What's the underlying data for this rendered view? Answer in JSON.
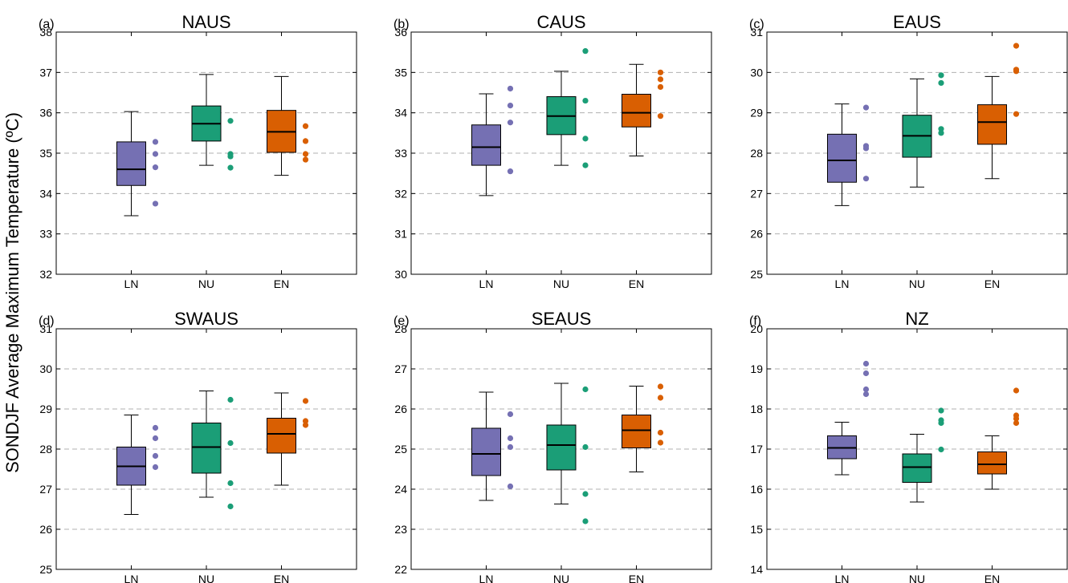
{
  "figure": {
    "ylabel": "SONDJF Average Maximum Temperature (ºC)"
  },
  "colors": {
    "LN": "#7570b3",
    "NU": "#1b9e77",
    "EN": "#d95f02"
  },
  "chart_data": [
    {
      "type": "box",
      "panel_label": "(a)",
      "title": "NAUS",
      "categories": [
        "LN",
        "NU",
        "EN"
      ],
      "ylim": [
        32,
        38
      ],
      "yticks": [
        32,
        33,
        34,
        35,
        36,
        37,
        38
      ],
      "grid": "horizontal dashed",
      "boxes": [
        {
          "name": "LN",
          "whisker_low": 33.45,
          "q1": 34.2,
          "median": 34.6,
          "q3": 35.28,
          "whisker_high": 36.03
        },
        {
          "name": "NU",
          "whisker_low": 34.7,
          "q1": 35.3,
          "median": 35.73,
          "q3": 36.17,
          "whisker_high": 36.95
        },
        {
          "name": "EN",
          "whisker_low": 34.45,
          "q1": 35.02,
          "median": 35.53,
          "q3": 36.06,
          "whisker_high": 36.9
        }
      ],
      "points": [
        {
          "name": "LN",
          "values": [
            35.28,
            34.98,
            34.65,
            33.75
          ]
        },
        {
          "name": "NU",
          "values": [
            35.8,
            34.98,
            34.92,
            34.64
          ]
        },
        {
          "name": "EN",
          "values": [
            35.67,
            35.3,
            34.98,
            34.84
          ]
        }
      ]
    },
    {
      "type": "box",
      "panel_label": "(b)",
      "title": "CAUS",
      "categories": [
        "LN",
        "NU",
        "EN"
      ],
      "ylim": [
        30,
        36
      ],
      "yticks": [
        30,
        31,
        32,
        33,
        34,
        35,
        36
      ],
      "grid": "horizontal dashed",
      "boxes": [
        {
          "name": "LN",
          "whisker_low": 31.95,
          "q1": 32.7,
          "median": 33.15,
          "q3": 33.7,
          "whisker_high": 34.47
        },
        {
          "name": "NU",
          "whisker_low": 32.7,
          "q1": 33.46,
          "median": 33.92,
          "q3": 34.4,
          "whisker_high": 35.03
        },
        {
          "name": "EN",
          "whisker_low": 32.93,
          "q1": 33.65,
          "median": 34.0,
          "q3": 34.46,
          "whisker_high": 35.2
        }
      ],
      "points": [
        {
          "name": "LN",
          "values": [
            34.6,
            34.18,
            33.76,
            32.55
          ]
        },
        {
          "name": "NU",
          "values": [
            35.53,
            34.3,
            33.36,
            32.7
          ]
        },
        {
          "name": "EN",
          "values": [
            35.0,
            34.83,
            34.64,
            33.92
          ]
        }
      ]
    },
    {
      "type": "box",
      "panel_label": "(c)",
      "title": "EAUS",
      "categories": [
        "LN",
        "NU",
        "EN"
      ],
      "ylim": [
        25,
        31
      ],
      "yticks": [
        25,
        26,
        27,
        28,
        29,
        30,
        31
      ],
      "grid": "horizontal dashed",
      "boxes": [
        {
          "name": "LN",
          "whisker_low": 26.7,
          "q1": 27.28,
          "median": 27.82,
          "q3": 28.47,
          "whisker_high": 29.22
        },
        {
          "name": "NU",
          "whisker_low": 27.16,
          "q1": 27.9,
          "median": 28.43,
          "q3": 28.94,
          "whisker_high": 29.84
        },
        {
          "name": "EN",
          "whisker_low": 27.37,
          "q1": 28.22,
          "median": 28.77,
          "q3": 29.2,
          "whisker_high": 29.9
        }
      ],
      "points": [
        {
          "name": "LN",
          "values": [
            29.13,
            28.18,
            28.12,
            27.37
          ]
        },
        {
          "name": "NU",
          "values": [
            29.93,
            29.74,
            28.6,
            28.5
          ]
        },
        {
          "name": "EN",
          "values": [
            30.66,
            30.07,
            30.03,
            28.97
          ]
        }
      ]
    },
    {
      "type": "box",
      "panel_label": "(d)",
      "title": "SWAUS",
      "categories": [
        "LN",
        "NU",
        "EN"
      ],
      "ylim": [
        25,
        31
      ],
      "yticks": [
        25,
        26,
        27,
        28,
        29,
        30,
        31
      ],
      "grid": "horizontal dashed",
      "boxes": [
        {
          "name": "LN",
          "whisker_low": 26.37,
          "q1": 27.1,
          "median": 27.57,
          "q3": 28.05,
          "whisker_high": 28.85
        },
        {
          "name": "NU",
          "whisker_low": 26.8,
          "q1": 27.4,
          "median": 28.05,
          "q3": 28.65,
          "whisker_high": 29.45
        },
        {
          "name": "EN",
          "whisker_low": 27.1,
          "q1": 27.9,
          "median": 28.38,
          "q3": 28.77,
          "whisker_high": 29.4
        }
      ],
      "points": [
        {
          "name": "LN",
          "values": [
            28.53,
            28.27,
            27.83,
            27.55
          ]
        },
        {
          "name": "NU",
          "values": [
            29.23,
            28.15,
            27.15,
            26.57
          ]
        },
        {
          "name": "EN",
          "values": [
            29.2,
            28.7,
            28.6
          ]
        }
      ]
    },
    {
      "type": "box",
      "panel_label": "(e)",
      "title": "SEAUS",
      "categories": [
        "LN",
        "NU",
        "EN"
      ],
      "ylim": [
        22,
        28
      ],
      "yticks": [
        22,
        23,
        24,
        25,
        26,
        27,
        28
      ],
      "grid": "horizontal dashed",
      "boxes": [
        {
          "name": "LN",
          "whisker_low": 23.72,
          "q1": 24.34,
          "median": 24.88,
          "q3": 25.52,
          "whisker_high": 26.42
        },
        {
          "name": "NU",
          "whisker_low": 23.63,
          "q1": 24.48,
          "median": 25.1,
          "q3": 25.6,
          "whisker_high": 26.64
        },
        {
          "name": "EN",
          "whisker_low": 24.43,
          "q1": 25.03,
          "median": 25.47,
          "q3": 25.85,
          "whisker_high": 26.57
        }
      ],
      "points": [
        {
          "name": "LN",
          "values": [
            25.87,
            25.27,
            25.05,
            24.07
          ]
        },
        {
          "name": "NU",
          "values": [
            26.49,
            25.05,
            23.88,
            23.2
          ]
        },
        {
          "name": "EN",
          "values": [
            26.56,
            26.28,
            25.41,
            25.16
          ]
        }
      ]
    },
    {
      "type": "box",
      "panel_label": "(f)",
      "title": "NZ",
      "categories": [
        "LN",
        "NU",
        "EN"
      ],
      "ylim": [
        14,
        20
      ],
      "yticks": [
        14,
        15,
        16,
        17,
        18,
        19,
        20
      ],
      "grid": "horizontal dashed",
      "boxes": [
        {
          "name": "LN",
          "whisker_low": 16.36,
          "q1": 16.76,
          "median": 17.03,
          "q3": 17.33,
          "whisker_high": 17.67
        },
        {
          "name": "NU",
          "whisker_low": 15.68,
          "q1": 16.17,
          "median": 16.55,
          "q3": 16.88,
          "whisker_high": 17.37
        },
        {
          "name": "EN",
          "whisker_low": 16.0,
          "q1": 16.38,
          "median": 16.62,
          "q3": 16.93,
          "whisker_high": 17.33
        }
      ],
      "points": [
        {
          "name": "LN",
          "values": [
            19.13,
            18.89,
            18.49,
            18.37
          ]
        },
        {
          "name": "NU",
          "values": [
            17.96,
            17.72,
            17.65,
            16.99
          ]
        },
        {
          "name": "EN",
          "values": [
            18.46,
            17.84,
            17.76,
            17.65
          ]
        }
      ]
    }
  ]
}
